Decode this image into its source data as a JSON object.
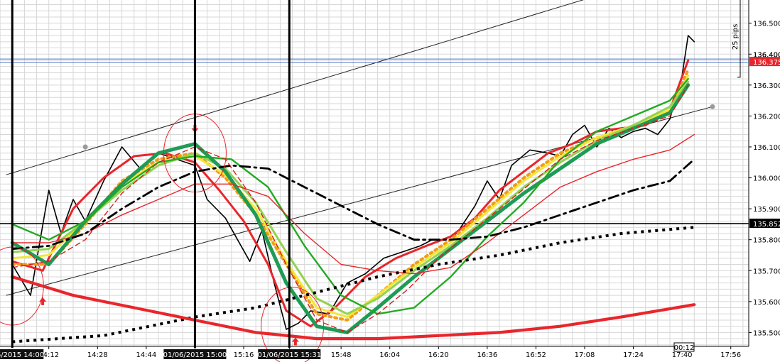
{
  "chart_data": {
    "type": "line",
    "instrument_note": "intraday price chart with moving averages",
    "x": {
      "start": "14:00",
      "end": "17:56",
      "ticks": [
        "14:12",
        "14:28",
        "14:44",
        "15:00",
        "15:16",
        "15:31",
        "15:48",
        "16:04",
        "16:20",
        "16:36",
        "16:52",
        "17:08",
        "17:24",
        "17:40",
        "17:56"
      ]
    },
    "y": {
      "ylim": [
        135.455,
        136.575
      ],
      "ticks": [
        135.5,
        135.6,
        135.7,
        135.8,
        135.9,
        136.0,
        136.1,
        136.2,
        136.3,
        136.4,
        136.5
      ],
      "tick_labels": [
        "135.500",
        "135.600",
        "135.700",
        "135.800",
        "135.900",
        "136.000",
        "136.100",
        "136.200",
        "136.300",
        "136.400",
        "136.500"
      ]
    },
    "grid": true,
    "current_price": {
      "value": 136.375,
      "label": "136.375",
      "color": "#e8262b"
    },
    "hidden_price_label": "136.400",
    "horizontal_line": {
      "value": 135.852,
      "label": "135.852"
    },
    "pip_ruler": {
      "label": "25 pips",
      "from": 136.585,
      "to": 136.325
    },
    "time_markers": [
      {
        "time": "14:00",
        "label": "01/06/2015 14:00"
      },
      {
        "time": "15:00",
        "label": "01/06/2015 15:00"
      },
      {
        "time": "15:31",
        "label": "01/06/2015 15:31"
      }
    ],
    "countdown": "00:12",
    "series": [
      {
        "style": "price",
        "color": "#000000",
        "x": [
          "14:00",
          "14:06",
          "14:12",
          "14:16",
          "14:20",
          "14:24",
          "14:30",
          "14:36",
          "14:42",
          "14:48",
          "14:54",
          "15:00",
          "15:04",
          "15:10",
          "15:14",
          "15:18",
          "15:22",
          "15:26",
          "15:30",
          "15:34",
          "15:38",
          "15:44",
          "15:50",
          "15:56",
          "16:02",
          "16:08",
          "16:14",
          "16:18",
          "16:22",
          "16:26",
          "16:32",
          "16:36",
          "16:40",
          "16:44",
          "16:50",
          "16:56",
          "17:00",
          "17:04",
          "17:08",
          "17:12",
          "17:16",
          "17:20",
          "17:24",
          "17:28",
          "17:32",
          "17:36",
          "17:40",
          "17:42",
          "17:44"
        ],
        "values": [
          135.72,
          135.62,
          135.96,
          135.82,
          135.93,
          135.86,
          135.99,
          136.1,
          136.03,
          136.08,
          136.06,
          136.04,
          135.93,
          135.87,
          135.8,
          135.73,
          135.83,
          135.66,
          135.51,
          135.53,
          135.57,
          135.56,
          135.66,
          135.69,
          135.74,
          135.76,
          135.78,
          135.8,
          135.8,
          135.82,
          135.91,
          135.99,
          135.93,
          136.04,
          136.09,
          136.08,
          136.07,
          136.14,
          136.17,
          136.1,
          136.16,
          136.13,
          136.15,
          136.16,
          136.14,
          136.19,
          136.33,
          136.46,
          136.44
        ]
      },
      {
        "style": "ma-fast",
        "color": "#e8262b",
        "x": [
          "14:00",
          "14:10",
          "14:20",
          "14:30",
          "14:40",
          "14:50",
          "15:00",
          "15:08",
          "15:16",
          "15:24",
          "15:30",
          "15:38",
          "15:46",
          "15:56",
          "16:06",
          "16:16",
          "16:24",
          "16:32",
          "16:40",
          "16:48",
          "16:56",
          "17:04",
          "17:12",
          "17:20",
          "17:28",
          "17:36",
          "17:42"
        ],
        "values": [
          135.73,
          135.7,
          135.9,
          136.0,
          136.07,
          136.08,
          136.05,
          135.96,
          135.86,
          135.72,
          135.57,
          135.52,
          135.58,
          135.68,
          135.74,
          135.78,
          135.81,
          135.87,
          135.96,
          136.02,
          136.08,
          136.11,
          136.15,
          136.16,
          136.17,
          136.22,
          136.38
        ]
      },
      {
        "style": "ma-orange",
        "color": "#f39c12",
        "x": [
          "14:00",
          "14:12",
          "14:24",
          "14:36",
          "14:48",
          "15:00",
          "15:10",
          "15:20",
          "15:30",
          "15:40",
          "15:50",
          "16:00",
          "16:12",
          "16:24",
          "16:36",
          "16:48",
          "17:00",
          "17:12",
          "17:24",
          "17:36",
          "17:42"
        ],
        "values": [
          135.72,
          135.72,
          135.85,
          135.99,
          136.06,
          136.08,
          136.0,
          135.88,
          135.72,
          135.56,
          135.54,
          135.62,
          135.72,
          135.8,
          135.9,
          136.0,
          136.08,
          136.13,
          136.16,
          136.21,
          136.35
        ]
      },
      {
        "style": "ma-yellow",
        "color": "#f1e739",
        "x": [
          "14:00",
          "14:12",
          "14:24",
          "14:36",
          "14:48",
          "15:00",
          "15:10",
          "15:20",
          "15:30",
          "15:40",
          "15:50",
          "16:00",
          "16:12",
          "16:24",
          "16:36",
          "16:48",
          "17:00",
          "17:12",
          "17:24",
          "17:36",
          "17:42"
        ],
        "values": [
          135.74,
          135.75,
          135.86,
          135.98,
          136.05,
          136.07,
          136.01,
          135.9,
          135.73,
          135.58,
          135.55,
          135.62,
          135.71,
          135.79,
          135.89,
          135.99,
          136.07,
          136.13,
          136.17,
          136.22,
          136.33
        ]
      },
      {
        "style": "ma-lightgreen",
        "color": "#93d250",
        "x": [
          "14:00",
          "14:12",
          "14:24",
          "14:36",
          "14:48",
          "15:00",
          "15:10",
          "15:20",
          "15:30",
          "15:40",
          "15:50",
          "16:00",
          "16:12",
          "16:24",
          "16:36",
          "16:48",
          "17:00",
          "17:12",
          "17:24",
          "17:36",
          "17:42"
        ],
        "values": [
          135.76,
          135.77,
          135.86,
          135.96,
          136.04,
          136.08,
          136.03,
          135.92,
          135.76,
          135.61,
          135.56,
          135.61,
          135.7,
          135.78,
          135.87,
          135.97,
          136.05,
          136.12,
          136.17,
          136.23,
          136.31
        ]
      },
      {
        "style": "ma-teal-thick",
        "color": "#1e9b55",
        "x": [
          "14:00",
          "14:12",
          "14:24",
          "14:36",
          "14:48",
          "15:00",
          "15:10",
          "15:20",
          "15:30",
          "15:40",
          "15:50",
          "16:00",
          "16:12",
          "16:24",
          "16:36",
          "16:48",
          "17:00",
          "17:12",
          "17:24",
          "17:36",
          "17:42"
        ],
        "values": [
          135.79,
          135.72,
          135.86,
          135.98,
          136.08,
          136.11,
          136.02,
          135.88,
          135.66,
          135.52,
          135.5,
          135.58,
          135.68,
          135.77,
          135.86,
          135.95,
          136.03,
          136.11,
          136.16,
          136.21,
          136.3
        ]
      },
      {
        "style": "ma-green",
        "color": "#22aa22",
        "x": [
          "14:00",
          "14:12",
          "14:24",
          "14:36",
          "14:48",
          "15:00",
          "15:12",
          "15:24",
          "15:36",
          "15:48",
          "16:00",
          "16:12",
          "16:24",
          "16:36",
          "16:48",
          "17:00",
          "17:12",
          "17:24",
          "17:36",
          "17:42"
        ],
        "values": [
          135.85,
          135.8,
          135.86,
          135.97,
          136.05,
          136.07,
          136.06,
          135.97,
          135.78,
          135.62,
          135.56,
          135.58,
          135.68,
          135.81,
          135.92,
          136.06,
          136.15,
          136.2,
          136.25,
          136.32
        ]
      },
      {
        "style": "ma-red-dashed",
        "color": "#d62020",
        "x": [
          "14:00",
          "14:12",
          "14:24",
          "14:36",
          "14:48",
          "15:00",
          "15:10",
          "15:20",
          "15:30",
          "15:40",
          "15:50",
          "16:00",
          "16:10",
          "16:20",
          "16:30",
          "16:40",
          "16:50",
          "17:00",
          "17:12",
          "17:24",
          "17:36",
          "17:42"
        ],
        "values": [
          135.71,
          135.73,
          135.8,
          135.95,
          136.05,
          136.1,
          136.06,
          135.92,
          135.72,
          135.54,
          135.5,
          135.56,
          135.64,
          135.74,
          135.82,
          135.9,
          135.98,
          136.06,
          136.12,
          136.16,
          136.2,
          136.3
        ]
      },
      {
        "style": "ma-red-thin",
        "color": "#e8262b",
        "x": [
          "14:00",
          "14:12",
          "14:24",
          "14:36",
          "14:48",
          "15:00",
          "15:12",
          "15:24",
          "15:36",
          "15:48",
          "16:00",
          "16:12",
          "16:24",
          "16:36",
          "16:48",
          "17:00",
          "17:12",
          "17:24",
          "17:36",
          "17:44"
        ],
        "values": [
          135.79,
          135.79,
          135.82,
          135.88,
          135.93,
          135.98,
          135.98,
          135.94,
          135.82,
          135.72,
          135.7,
          135.69,
          135.71,
          135.79,
          135.88,
          135.97,
          136.02,
          136.06,
          136.09,
          136.14
        ]
      },
      {
        "style": "ma-black-dashdot",
        "color": "#000000",
        "x": [
          "14:00",
          "14:12",
          "14:24",
          "14:36",
          "14:48",
          "15:00",
          "15:12",
          "15:24",
          "15:36",
          "15:48",
          "16:00",
          "16:12",
          "16:24",
          "16:36",
          "16:48",
          "17:00",
          "17:12",
          "17:24",
          "17:36",
          "17:44"
        ],
        "values": [
          135.77,
          135.78,
          135.82,
          135.9,
          135.97,
          136.02,
          136.04,
          136.03,
          135.97,
          135.91,
          135.85,
          135.8,
          135.8,
          135.81,
          135.84,
          135.88,
          135.92,
          135.96,
          135.99,
          136.06
        ]
      },
      {
        "style": "ma-black-dotted",
        "color": "#000000",
        "x": [
          "14:00",
          "14:30",
          "15:00",
          "15:20",
          "15:40",
          "16:00",
          "16:20",
          "16:40",
          "17:00",
          "17:20",
          "17:44"
        ],
        "values": [
          135.47,
          135.49,
          135.55,
          135.58,
          135.63,
          135.68,
          135.72,
          135.75,
          135.79,
          135.82,
          135.84
        ]
      },
      {
        "style": "ma-red-thick",
        "color": "#e8262b",
        "x": [
          "14:00",
          "14:20",
          "14:40",
          "15:00",
          "15:20",
          "15:40",
          "16:00",
          "16:20",
          "16:40",
          "17:00",
          "17:20",
          "17:44"
        ],
        "values": [
          135.68,
          135.62,
          135.58,
          135.54,
          135.5,
          135.48,
          135.48,
          135.49,
          135.5,
          135.52,
          135.55,
          135.59
        ]
      }
    ],
    "trend_channel": {
      "upper": [
        {
          "time": "13:58",
          "value": 136.01
        },
        {
          "time": "17:09",
          "value": 136.58
        }
      ],
      "lower": [
        {
          "time": "13:58",
          "value": 135.62
        },
        {
          "time": "17:50",
          "value": 136.23
        }
      ],
      "anchors": [
        {
          "time": "14:24",
          "value": 136.1
        },
        {
          "time": "17:50",
          "value": 136.23
        }
      ]
    },
    "signal_circles": [
      {
        "time": "14:00",
        "value": 135.65,
        "label": "low"
      },
      {
        "time": "15:00",
        "value": 136.08,
        "label": "high"
      },
      {
        "time": "15:32",
        "value": 135.52,
        "label": "low"
      }
    ],
    "signal_arrows": [
      {
        "time": "14:10",
        "value": 135.6,
        "direction": "up",
        "color": "#e8262b"
      },
      {
        "time": "15:00",
        "value": 136.16,
        "direction": "down",
        "color": "#e8262b"
      },
      {
        "time": "15:33",
        "value": 135.47,
        "direction": "up",
        "color": "#e8262b"
      }
    ]
  }
}
